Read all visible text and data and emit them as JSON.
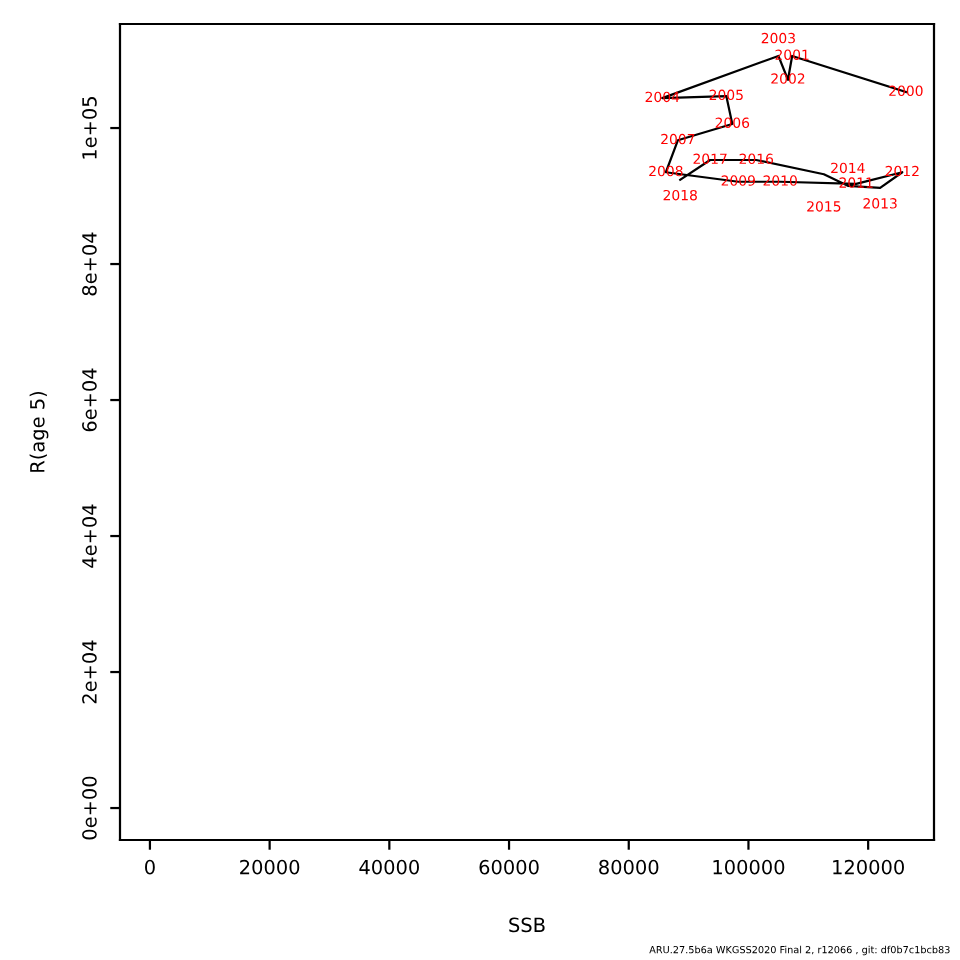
{
  "chart_data": {
    "type": "line",
    "xlabel": "SSB",
    "ylabel": "R(age 5)",
    "marker": "none",
    "grid": false,
    "legend": false,
    "x": [
      126300,
      107300,
      106600,
      105000,
      85600,
      96300,
      97300,
      88200,
      86200,
      98300,
      105300,
      118000,
      125700,
      122000,
      116600,
      112600,
      101300,
      93600,
      88600
    ],
    "series": [
      {
        "color": "#000000",
        "values": [
          105300,
          110600,
          107100,
          110600,
          104400,
          104700,
          100600,
          98200,
          93500,
          92100,
          92100,
          91800,
          93500,
          91200,
          91500,
          93200,
          95300,
          95300,
          92400
        ]
      }
    ],
    "xlim": [
      -5000,
      131000
    ],
    "ylim": [
      -4700,
      115300
    ],
    "xticks": [
      0,
      20000,
      40000,
      60000,
      80000,
      100000,
      120000
    ],
    "yticks": [
      {
        "value": 0,
        "label": "0e+00"
      },
      {
        "value": 20000,
        "label": "2e+04"
      },
      {
        "value": 40000,
        "label": "4e+04"
      },
      {
        "value": 60000,
        "label": "6e+04"
      },
      {
        "value": 80000,
        "label": "8e+04"
      },
      {
        "value": 100000,
        "label": "1e+05"
      }
    ],
    "annotations": [
      {
        "text": "2000",
        "x": 126300,
        "y": 105300
      },
      {
        "text": "2001",
        "x": 107300,
        "y": 110600
      },
      {
        "text": "2002",
        "x": 106600,
        "y": 107100
      },
      {
        "text": "2003",
        "x": 105000,
        "y": 110600
      },
      {
        "text": "2004",
        "x": 85600,
        "y": 104400
      },
      {
        "text": "2005",
        "x": 96300,
        "y": 104700
      },
      {
        "text": "2006",
        "x": 97300,
        "y": 100600
      },
      {
        "text": "2007",
        "x": 88200,
        "y": 98200
      },
      {
        "text": "2008",
        "x": 86200,
        "y": 93500
      },
      {
        "text": "2009",
        "x": 98300,
        "y": 92100
      },
      {
        "text": "2010",
        "x": 105300,
        "y": 92100
      },
      {
        "text": "2011",
        "x": 118000,
        "y": 91800
      },
      {
        "text": "2012",
        "x": 125700,
        "y": 93500
      },
      {
        "text": "2013",
        "x": 122000,
        "y": 91200
      },
      {
        "text": "2014",
        "x": 116600,
        "y": 91500
      },
      {
        "text": "2015",
        "x": 112600,
        "y": 93200
      },
      {
        "text": "2016",
        "x": 101300,
        "y": 95300
      },
      {
        "text": "2017",
        "x": 93600,
        "y": 95300
      },
      {
        "text": "2018",
        "x": 88600,
        "y": 92400
      },
      "ARU.27.5b6a WKGSS2020 Final 2, r12066 , git: df0b7c1bcb83"
    ]
  }
}
